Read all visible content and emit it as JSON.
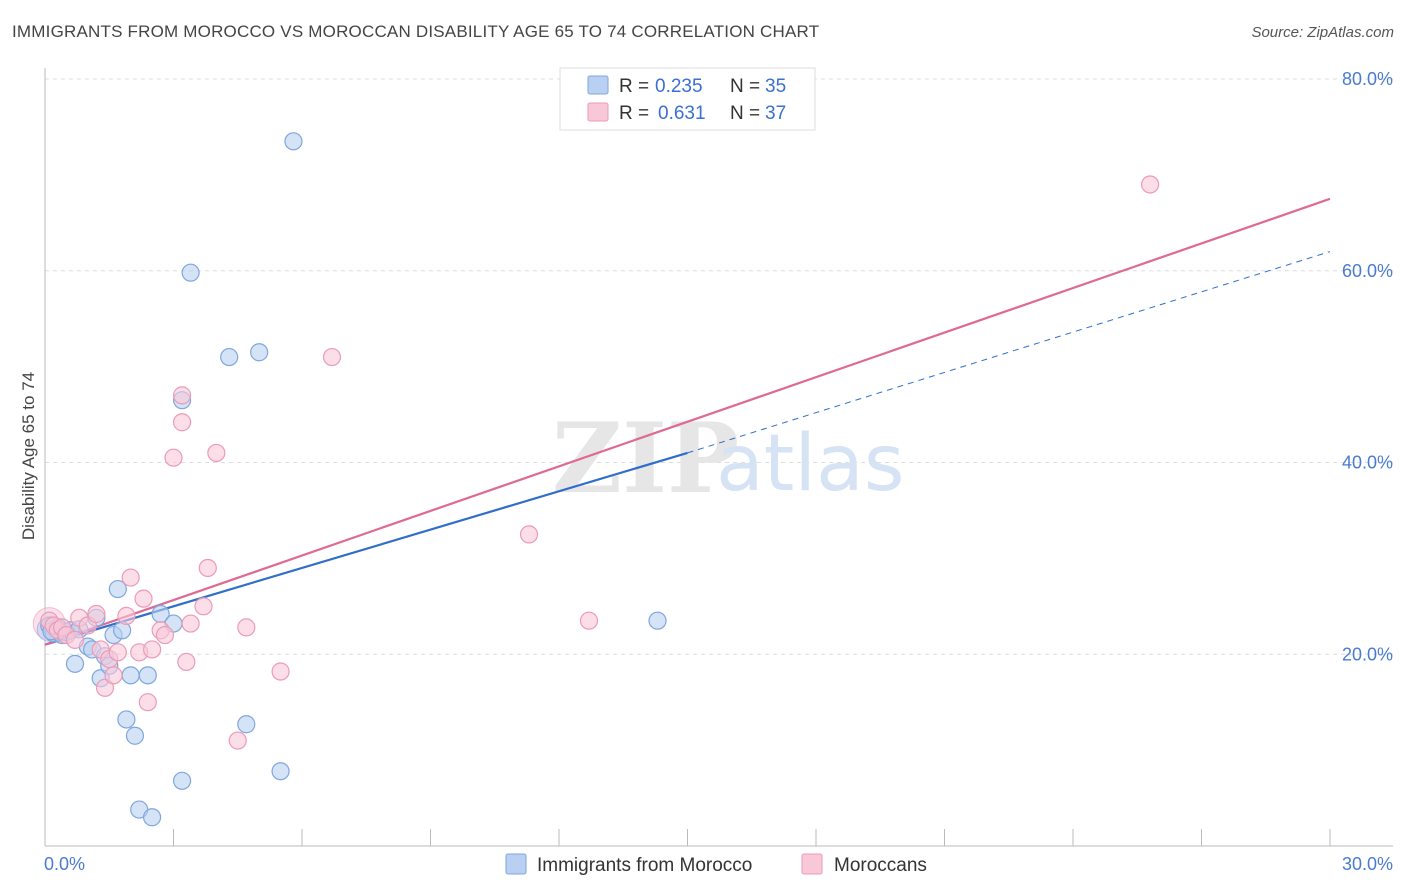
{
  "title": "IMMIGRANTS FROM MOROCCO VS MOROCCAN DISABILITY AGE 65 TO 74 CORRELATION CHART",
  "source": "Source: ZipAtlas.com",
  "watermark": {
    "zip": "ZIP",
    "atlas": "atlas"
  },
  "colors": {
    "blue_fill": "#b9d0f2",
    "blue_stroke": "#7fa6de",
    "blue_line": "#2f6ec9",
    "pink_fill": "#f8c8d8",
    "pink_stroke": "#ec9ab5",
    "pink_line": "#de6a93",
    "grid": "#dddddd",
    "tick_label": "#4a7bd0"
  },
  "chart_data": {
    "type": "scatter",
    "title": "IMMIGRANTS FROM MOROCCO VS MOROCCAN DISABILITY AGE 65 TO 74 CORRELATION CHART",
    "xlabel": "",
    "ylabel": "Disability Age 65 to 74",
    "xlim": [
      0,
      30
    ],
    "ylim": [
      0,
      80
    ],
    "x_tick_labels": [
      "0.0%",
      "30.0%"
    ],
    "y_tick_labels": [
      "20.0%",
      "40.0%",
      "60.0%",
      "80.0%"
    ],
    "y_ticks": [
      20,
      40,
      60,
      80
    ],
    "legend": [
      {
        "name": "Immigrants from Morocco",
        "r_label": "R =",
        "r": "0.235",
        "n_label": "N =",
        "n": "35"
      },
      {
        "name": "Moroccans",
        "r_label": "R =",
        "r": "0.631",
        "n_label": "N =",
        "n": "37"
      }
    ],
    "series": [
      {
        "name": "Immigrants from Morocco",
        "color": "blue",
        "points": [
          [
            0.1,
            23.0
          ],
          [
            0.2,
            22.2
          ],
          [
            0.3,
            22.8
          ],
          [
            0.4,
            22.0
          ],
          [
            0.5,
            22.3
          ],
          [
            0.6,
            22.5
          ],
          [
            0.7,
            19.0
          ],
          [
            0.8,
            22.6
          ],
          [
            1.0,
            20.8
          ],
          [
            1.1,
            20.5
          ],
          [
            1.2,
            23.8
          ],
          [
            1.3,
            17.5
          ],
          [
            1.4,
            19.8
          ],
          [
            1.5,
            18.8
          ],
          [
            1.6,
            22.0
          ],
          [
            1.7,
            26.8
          ],
          [
            1.8,
            22.5
          ],
          [
            1.9,
            13.2
          ],
          [
            2.0,
            17.8
          ],
          [
            2.1,
            11.5
          ],
          [
            2.2,
            3.8
          ],
          [
            2.4,
            17.8
          ],
          [
            2.5,
            3.0
          ],
          [
            2.7,
            24.2
          ],
          [
            3.0,
            23.2
          ],
          [
            3.2,
            6.8
          ],
          [
            3.2,
            46.5
          ],
          [
            3.4,
            59.8
          ],
          [
            4.3,
            51.0
          ],
          [
            4.7,
            12.7
          ],
          [
            5.0,
            51.5
          ],
          [
            5.5,
            7.8
          ],
          [
            5.8,
            73.5
          ],
          [
            14.3,
            23.5
          ],
          [
            0.15,
            22.4
          ]
        ],
        "trend": {
          "x": [
            0,
            15.0
          ],
          "y": [
            21.0,
            41.0
          ]
        },
        "trend_dashed": {
          "x": [
            15.0,
            30.0
          ],
          "y": [
            41.0,
            62.0
          ]
        }
      },
      {
        "name": "Moroccans",
        "color": "pink",
        "points": [
          [
            0.1,
            23.5
          ],
          [
            0.2,
            23.0
          ],
          [
            0.3,
            22.5
          ],
          [
            0.4,
            22.8
          ],
          [
            0.5,
            22.0
          ],
          [
            0.7,
            21.5
          ],
          [
            0.8,
            23.8
          ],
          [
            1.0,
            23.0
          ],
          [
            1.2,
            24.2
          ],
          [
            1.3,
            20.5
          ],
          [
            1.4,
            16.5
          ],
          [
            1.5,
            19.5
          ],
          [
            1.6,
            17.8
          ],
          [
            1.7,
            20.2
          ],
          [
            1.9,
            24.0
          ],
          [
            2.0,
            28.0
          ],
          [
            2.2,
            20.2
          ],
          [
            2.3,
            25.8
          ],
          [
            2.4,
            15.0
          ],
          [
            2.5,
            20.5
          ],
          [
            2.7,
            22.5
          ],
          [
            2.8,
            22.0
          ],
          [
            3.0,
            40.5
          ],
          [
            3.2,
            47.0
          ],
          [
            3.2,
            44.2
          ],
          [
            3.3,
            19.2
          ],
          [
            3.4,
            23.2
          ],
          [
            3.7,
            25.0
          ],
          [
            3.8,
            29.0
          ],
          [
            4.0,
            41.0
          ],
          [
            4.5,
            11.0
          ],
          [
            4.7,
            22.8
          ],
          [
            5.5,
            18.2
          ],
          [
            6.7,
            51.0
          ],
          [
            11.3,
            32.5
          ],
          [
            12.7,
            23.5
          ],
          [
            25.8,
            69.0
          ]
        ],
        "trend": {
          "x": [
            0,
            30.0
          ],
          "y": [
            21.0,
            67.5
          ]
        }
      }
    ]
  }
}
